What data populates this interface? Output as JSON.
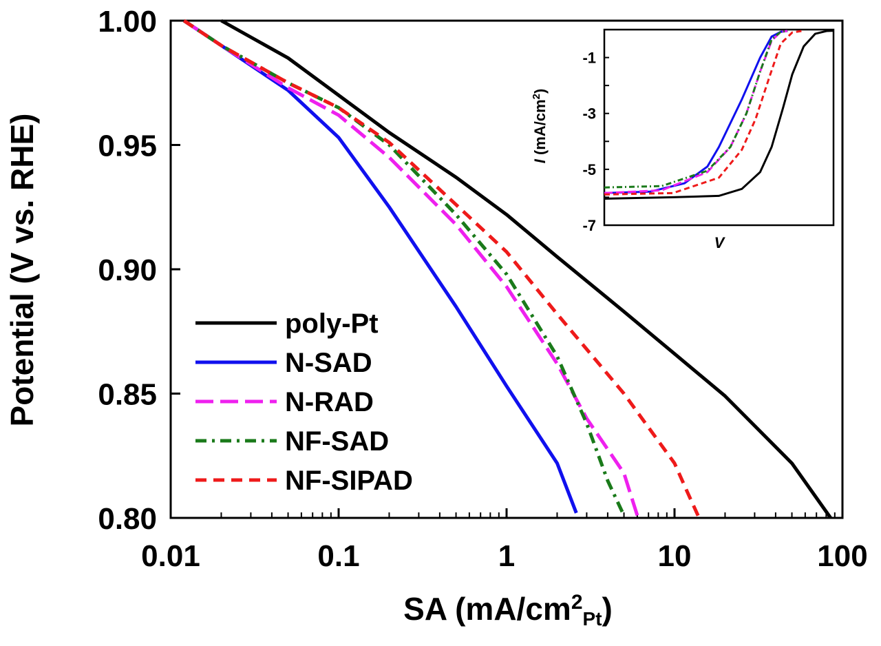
{
  "chart_data": [
    {
      "type": "line",
      "xscale": "log",
      "xlabel_main": "SA (mA/cm",
      "xlabel_sup": "2",
      "xlabel_sub": "Pt",
      "xlabel_close": ")",
      "ylabel": "Potential (V vs. RHE)",
      "xlim": [
        0.01,
        100
      ],
      "ylim": [
        0.8,
        1.0
      ],
      "x_ticks": [
        0.01,
        0.1,
        1,
        10,
        100
      ],
      "x_tick_labels": [
        "0.01",
        "0.1",
        "1",
        "10",
        "100"
      ],
      "y_ticks": [
        0.8,
        0.85,
        0.9,
        0.95,
        1.0
      ],
      "y_tick_labels": [
        "0.80",
        "0.85",
        "0.90",
        "0.95",
        "1.00"
      ],
      "grid": false,
      "legend_position": "bottom-left",
      "series": [
        {
          "name": "poly-Pt",
          "color": "#000000",
          "dash": "solid",
          "points": [
            [
              0.02,
              1.0
            ],
            [
              0.05,
              0.985
            ],
            [
              0.1,
              0.97
            ],
            [
              0.2,
              0.955
            ],
            [
              0.5,
              0.937
            ],
            [
              1,
              0.922
            ],
            [
              2,
              0.905
            ],
            [
              5,
              0.883
            ],
            [
              10,
              0.866
            ],
            [
              20,
              0.849
            ],
            [
              50,
              0.822
            ],
            [
              85,
              0.8
            ]
          ]
        },
        {
          "name": "N-SAD",
          "color": "#1010ee",
          "dash": "solid",
          "points": [
            [
              0.012,
              1.0
            ],
            [
              0.02,
              0.99
            ],
            [
              0.05,
              0.972
            ],
            [
              0.1,
              0.953
            ],
            [
              0.2,
              0.925
            ],
            [
              0.5,
              0.885
            ],
            [
              1,
              0.853
            ],
            [
              2,
              0.822
            ],
            [
              2.6,
              0.802
            ]
          ]
        },
        {
          "name": "N-RAD",
          "color": "#ee20ee",
          "dash": "longdash",
          "points": [
            [
              0.012,
              1.0
            ],
            [
              0.02,
              0.99
            ],
            [
              0.05,
              0.973
            ],
            [
              0.1,
              0.962
            ],
            [
              0.2,
              0.945
            ],
            [
              0.5,
              0.918
            ],
            [
              1,
              0.893
            ],
            [
              2,
              0.862
            ],
            [
              3,
              0.84
            ],
            [
              5,
              0.818
            ],
            [
              6,
              0.801
            ]
          ]
        },
        {
          "name": "NF-SAD",
          "color": "#1a7a1a",
          "dash": "dashdot",
          "points": [
            [
              0.012,
              1.0
            ],
            [
              0.02,
              0.99
            ],
            [
              0.05,
              0.975
            ],
            [
              0.1,
              0.965
            ],
            [
              0.2,
              0.95
            ],
            [
              0.5,
              0.922
            ],
            [
              1,
              0.898
            ],
            [
              2,
              0.865
            ],
            [
              3,
              0.838
            ],
            [
              4,
              0.815
            ],
            [
              5,
              0.801
            ]
          ]
        },
        {
          "name": "NF-SIPAD",
          "color": "#ee1a1a",
          "dash": "dash",
          "points": [
            [
              0.012,
              1.0
            ],
            [
              0.02,
              0.99
            ],
            [
              0.05,
              0.975
            ],
            [
              0.1,
              0.965
            ],
            [
              0.2,
              0.951
            ],
            [
              0.5,
              0.926
            ],
            [
              1,
              0.907
            ],
            [
              2,
              0.882
            ],
            [
              5,
              0.85
            ],
            [
              10,
              0.822
            ],
            [
              12,
              0.81
            ],
            [
              14,
              0.8
            ]
          ]
        }
      ]
    },
    {
      "type": "line",
      "name": "inset",
      "xlabel": "V",
      "ylabel_italic": "I",
      "ylabel_main": " (mA/cm",
      "ylabel_sup": "2",
      "ylabel_close": ")",
      "xlim": [
        0,
        1
      ],
      "ylim": [
        -7,
        0
      ],
      "y_ticks": [
        -1,
        -3,
        -5,
        -7
      ],
      "y_tick_labels": [
        "-1",
        "-3",
        "-5",
        "-7"
      ],
      "series": [
        {
          "name": "N-SAD",
          "color": "#1010ee",
          "dash": "solid",
          "points": [
            [
              0,
              -5.85
            ],
            [
              0.2,
              -5.8
            ],
            [
              0.35,
              -5.5
            ],
            [
              0.45,
              -4.9
            ],
            [
              0.5,
              -4.2
            ],
            [
              0.6,
              -2.5
            ],
            [
              0.68,
              -1.0
            ],
            [
              0.73,
              -0.25
            ],
            [
              0.77,
              -0.08
            ],
            [
              0.8,
              -0.05
            ]
          ]
        },
        {
          "name": "N-RAD",
          "color": "#ee20ee",
          "dash": "longdash",
          "points": [
            [
              0,
              -5.85
            ],
            [
              0.25,
              -5.75
            ],
            [
              0.45,
              -5.1
            ],
            [
              0.55,
              -4.2
            ],
            [
              0.62,
              -3.0
            ],
            [
              0.68,
              -1.5
            ],
            [
              0.73,
              -0.4
            ],
            [
              0.77,
              -0.08
            ],
            [
              0.8,
              -0.05
            ]
          ]
        },
        {
          "name": "NF-SAD",
          "color": "#1a7a1a",
          "dash": "dashdot",
          "points": [
            [
              0,
              -5.65
            ],
            [
              0.25,
              -5.6
            ],
            [
              0.45,
              -5.05
            ],
            [
              0.55,
              -4.2
            ],
            [
              0.62,
              -3.0
            ],
            [
              0.68,
              -1.5
            ],
            [
              0.73,
              -0.35
            ],
            [
              0.77,
              -0.08
            ],
            [
              0.8,
              -0.05
            ]
          ]
        },
        {
          "name": "NF-SIPAD",
          "color": "#ee1a1a",
          "dash": "dash",
          "points": [
            [
              0,
              -5.9
            ],
            [
              0.3,
              -5.85
            ],
            [
              0.5,
              -5.3
            ],
            [
              0.6,
              -4.3
            ],
            [
              0.66,
              -3.2
            ],
            [
              0.72,
              -1.7
            ],
            [
              0.77,
              -0.5
            ],
            [
              0.82,
              -0.1
            ],
            [
              0.86,
              -0.05
            ]
          ]
        },
        {
          "name": "poly-Pt",
          "color": "#000000",
          "dash": "solid",
          "points": [
            [
              0,
              -6.05
            ],
            [
              0.3,
              -6.0
            ],
            [
              0.5,
              -5.95
            ],
            [
              0.6,
              -5.7
            ],
            [
              0.68,
              -5.1
            ],
            [
              0.73,
              -4.2
            ],
            [
              0.78,
              -2.8
            ],
            [
              0.82,
              -1.6
            ],
            [
              0.87,
              -0.6
            ],
            [
              0.92,
              -0.15
            ],
            [
              0.97,
              -0.05
            ],
            [
              1.0,
              -0.04
            ]
          ]
        }
      ]
    }
  ]
}
